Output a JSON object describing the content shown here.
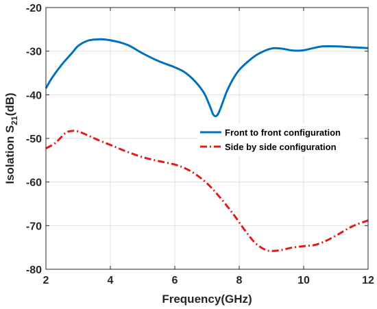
{
  "chart_data": {
    "type": "line",
    "title": "",
    "xlabel": "Frequency(GHz)",
    "ylabel_main": "Isolation S",
    "ylabel_sub": "21",
    "ylabel_unit": "(dB)",
    "xlim": [
      2,
      12
    ],
    "ylim": [
      -80,
      -20
    ],
    "xticks": [
      2,
      4,
      6,
      8,
      10,
      12
    ],
    "yticks": [
      -80,
      -70,
      -60,
      -50,
      -40,
      -30,
      -20
    ],
    "grid": true,
    "legend_position": "right",
    "series": [
      {
        "name": "Front to front configuration",
        "color": "#0072BD",
        "style": "solid",
        "x": [
          2.0,
          2.2,
          2.5,
          2.8,
          3.0,
          3.3,
          3.6,
          3.8,
          4.0,
          4.3,
          4.6,
          5.0,
          5.5,
          6.0,
          6.3,
          6.6,
          6.9,
          7.1,
          7.2,
          7.3,
          7.4,
          7.6,
          7.8,
          8.0,
          8.3,
          8.6,
          9.0,
          9.3,
          9.6,
          9.8,
          10.0,
          10.3,
          10.6,
          11.0,
          11.5,
          12.0
        ],
        "y": [
          -38.5,
          -36.0,
          -33.0,
          -30.5,
          -28.8,
          -27.6,
          -27.3,
          -27.3,
          -27.5,
          -28.0,
          -28.8,
          -30.5,
          -32.3,
          -33.7,
          -34.8,
          -36.7,
          -39.5,
          -42.8,
          -44.6,
          -44.8,
          -43.5,
          -39.5,
          -36.5,
          -34.3,
          -32.2,
          -30.6,
          -29.4,
          -29.4,
          -29.8,
          -29.9,
          -29.8,
          -29.3,
          -28.9,
          -28.9,
          -29.1,
          -29.3
        ]
      },
      {
        "name": "Side by side configuration",
        "color": "#E01B1B",
        "style": "dashdot",
        "x": [
          2.0,
          2.3,
          2.6,
          2.8,
          3.0,
          3.3,
          3.6,
          4.0,
          4.5,
          5.0,
          5.5,
          6.0,
          6.3,
          6.6,
          7.0,
          7.4,
          7.8,
          8.2,
          8.5,
          8.8,
          9.0,
          9.3,
          9.6,
          10.0,
          10.3,
          10.6,
          11.0,
          11.5,
          12.0
        ],
        "y": [
          -52.3,
          -51.0,
          -48.8,
          -48.3,
          -48.4,
          -49.3,
          -50.3,
          -51.5,
          -53.0,
          -54.3,
          -55.2,
          -56.0,
          -56.8,
          -58.0,
          -60.3,
          -63.5,
          -67.2,
          -71.3,
          -74.0,
          -75.5,
          -75.8,
          -75.6,
          -75.1,
          -74.7,
          -74.5,
          -73.8,
          -72.3,
          -70.2,
          -68.8
        ]
      }
    ]
  }
}
